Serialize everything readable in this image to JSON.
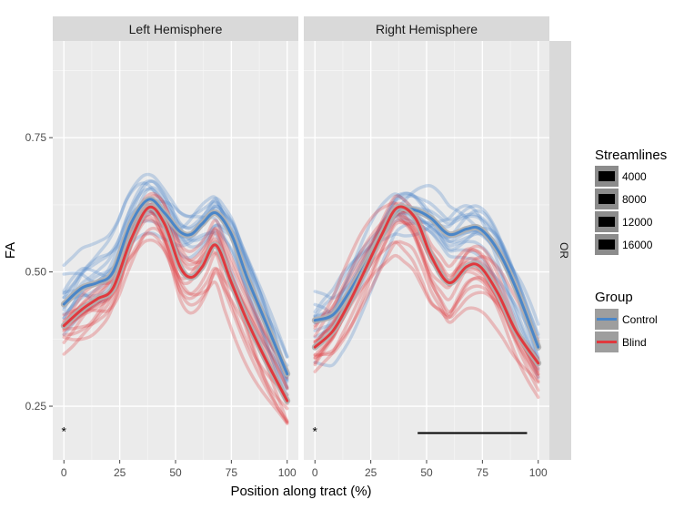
{
  "chart_data": {
    "type": "line",
    "ylabel": "FA",
    "xlabel": "Position along tract (%)",
    "xlim": [
      -5,
      105
    ],
    "ylim": [
      0.15,
      0.93
    ],
    "xticks": [
      0,
      25,
      50,
      75,
      100
    ],
    "yticks": [
      0.25,
      0.5,
      0.75
    ],
    "ytick_labels": [
      "0.25",
      "0.50",
      "0.75"
    ],
    "facet_row_label": "OR",
    "panels": [
      {
        "title": "Left Hemisphere",
        "star": "*",
        "star_x": 0,
        "star_y": 0.205,
        "significance_bar": null,
        "mean_x": [
          0,
          8,
          15,
          22,
          30,
          38,
          45,
          52,
          57,
          62,
          68,
          75,
          82,
          90,
          100
        ],
        "series": [
          {
            "name": "Control",
            "color": "#4a86c8",
            "mean": [
              0.44,
              0.47,
              0.48,
              0.5,
              0.59,
              0.635,
              0.61,
              0.575,
              0.57,
              0.59,
              0.61,
              0.57,
              0.49,
              0.41,
              0.31
            ]
          },
          {
            "name": "Blind",
            "color": "#e0393e",
            "mean": [
              0.4,
              0.43,
              0.45,
              0.47,
              0.56,
              0.62,
              0.59,
              0.51,
              0.49,
              0.51,
              0.55,
              0.48,
              0.41,
              0.34,
              0.26
            ]
          }
        ]
      },
      {
        "title": "Right Hemisphere",
        "star": "*",
        "star_x": 0,
        "star_y": 0.205,
        "significance_bar": {
          "x_start": 46,
          "x_end": 95,
          "y": 0.2
        },
        "mean_x": [
          0,
          8,
          15,
          22,
          30,
          37,
          45,
          52,
          60,
          68,
          74,
          82,
          90,
          100
        ],
        "series": [
          {
            "name": "Control",
            "color": "#4a86c8",
            "mean": [
              0.41,
              0.42,
              0.46,
              0.51,
              0.57,
              0.615,
              0.615,
              0.6,
              0.57,
              0.58,
              0.58,
              0.54,
              0.47,
              0.36
            ]
          },
          {
            "name": "Blind",
            "color": "#e0393e",
            "mean": [
              0.36,
              0.39,
              0.44,
              0.5,
              0.57,
              0.62,
              0.6,
              0.53,
              0.48,
              0.51,
              0.51,
              0.46,
              0.39,
              0.33
            ]
          }
        ]
      }
    ],
    "legend_streamlines": {
      "title": "Streamlines",
      "items": [
        "4000",
        "8000",
        "12000",
        "16000"
      ]
    },
    "legend_group": {
      "title": "Group",
      "items": [
        {
          "label": "Control",
          "color": "#4a86c8"
        },
        {
          "label": "Blind",
          "color": "#e0393e"
        }
      ]
    }
  }
}
